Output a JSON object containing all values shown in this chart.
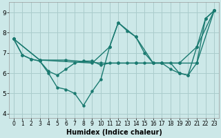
{
  "xlabel": "Humidex (Indice chaleur)",
  "xlim": [
    -0.5,
    23.5
  ],
  "ylim": [
    3.8,
    9.5
  ],
  "yticks": [
    4,
    5,
    6,
    7,
    8,
    9
  ],
  "xticks": [
    0,
    1,
    2,
    3,
    4,
    5,
    6,
    7,
    8,
    9,
    10,
    11,
    12,
    13,
    14,
    15,
    16,
    17,
    18,
    19,
    20,
    21,
    22,
    23
  ],
  "background_color": "#cce8e8",
  "grid_color": "#aacccc",
  "line_color": "#1a7a70",
  "line1_x": [
    0,
    1,
    2,
    3,
    4,
    5,
    6,
    7,
    8,
    9,
    10,
    11,
    12,
    13,
    14,
    15,
    16,
    17,
    18,
    19,
    20,
    21,
    22,
    23
  ],
  "line1_y": [
    7.7,
    6.9,
    6.7,
    6.6,
    6.0,
    5.3,
    5.2,
    5.0,
    4.4,
    5.1,
    5.7,
    7.3,
    8.5,
    8.1,
    7.8,
    7.0,
    6.5,
    6.5,
    6.5,
    6.0,
    5.9,
    7.3,
    8.7,
    9.1
  ],
  "line2_x": [
    0,
    1,
    2,
    3,
    4,
    5,
    6,
    7,
    8,
    9,
    10,
    11,
    12,
    13,
    14,
    15,
    16,
    17,
    18,
    19,
    20,
    21,
    22,
    23
  ],
  "line2_y": [
    7.7,
    6.9,
    6.7,
    6.6,
    6.1,
    5.9,
    6.2,
    6.5,
    6.6,
    6.6,
    6.4,
    6.5,
    6.5,
    6.5,
    6.5,
    6.5,
    6.5,
    6.5,
    6.2,
    6.0,
    5.9,
    6.5,
    8.7,
    9.1
  ],
  "line3_x": [
    0,
    3,
    6,
    10,
    12,
    14,
    17,
    19,
    21,
    23
  ],
  "line3_y": [
    7.7,
    6.65,
    6.65,
    6.5,
    6.5,
    6.5,
    6.5,
    6.5,
    6.5,
    9.1
  ],
  "line4_x": [
    0,
    3,
    9,
    11,
    12,
    14,
    16,
    19,
    21,
    23
  ],
  "line4_y": [
    7.7,
    6.65,
    6.5,
    7.3,
    8.5,
    7.8,
    6.5,
    6.5,
    7.3,
    9.1
  ]
}
